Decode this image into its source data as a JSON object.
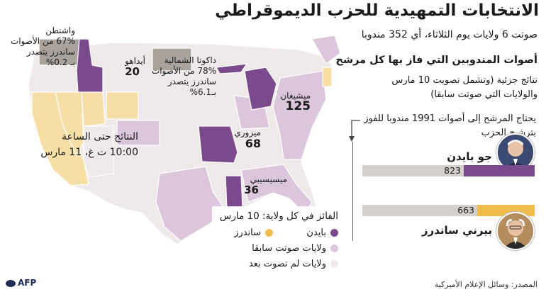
{
  "title": "الانتخابات التمهيدية للحزب الديموقراطي",
  "subtitle": "صوتت 6 ولايات يوم الثلاثاء، أي 352 مندوبا",
  "delegates_section": {
    "heading": "أصوات المندوبين التي فاز بها كل مرشح",
    "note": "نتائج جزئية (وتشمل تصويت 10 مارس والولايات التي صوتت سابقا)",
    "threshold": "يحتاج المرشح إلى أصوات 1991 مندوبا للفوز بترشيح الحزب"
  },
  "colors": {
    "biden": "#7a4a8c",
    "sanders": "#f0bc4a",
    "voted_earlier": "#dcc6dc",
    "not_voted": "#efe9ea",
    "undecided": "#aaa29d",
    "pending": "#f5dfa7",
    "bar_bg": "#d5d0cc"
  },
  "chart_data": {
    "type": "bar",
    "orientation": "horizontal",
    "xlim": [
      0,
      1991
    ],
    "categories": [
      "جو بايدن",
      "بيرني ساندرز"
    ],
    "values": [
      823,
      663
    ],
    "target": 1991
  },
  "map_labels": {
    "washington": {
      "name": "واشنطن",
      "detail1": "67% من الأصوات",
      "detail2": "ساندرز يتصدر",
      "detail3": "بـ 0.2%"
    },
    "idaho": {
      "name": "أيداهو",
      "value": "20"
    },
    "north_dakota": {
      "name": "داكوتا الشمالية",
      "detail1": "78% من الأصوات",
      "detail2": "ساندرز يتصدر",
      "detail3": "بـ6.1%"
    },
    "michigan": {
      "name": "ميشيغان",
      "value": "125"
    },
    "missouri": {
      "name": "ميزوري",
      "value": "68"
    },
    "mississippi": {
      "name": "ميسيسيبي",
      "value": "36"
    },
    "california": {
      "line1": "النتائج حتى الساعة",
      "line2": "10:00 ت غ، 11 مارس"
    }
  },
  "legend": {
    "title": "الفائز في كل ولاية: 10 مارس",
    "biden": "بايدن",
    "sanders": "ساندرز",
    "voted_earlier": "ولايات صوتت سابقا",
    "not_voted": "ولايات لم تصوت بعد"
  },
  "source": "المصدر: وسائل الإعلام الأميركية",
  "logo": "AFP"
}
